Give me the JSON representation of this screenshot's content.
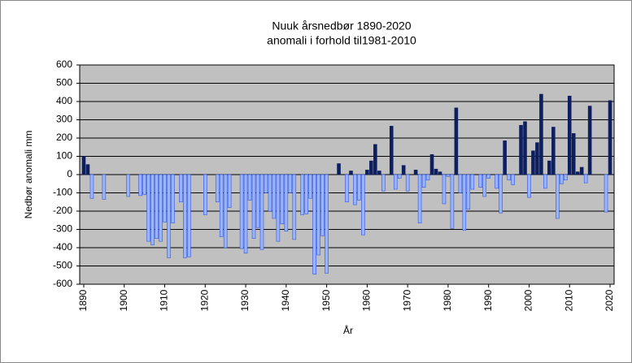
{
  "chart_data": {
    "type": "bar",
    "title": "Nuuk årsnedbør 1890-2020",
    "subtitle": "anomali i forhold til1981-2010",
    "x_label": "År",
    "y_label": "Nedbør anomali mm",
    "x": [
      1890,
      1891,
      1892,
      1893,
      1894,
      1895,
      1896,
      1897,
      1898,
      1899,
      1900,
      1901,
      1902,
      1903,
      1904,
      1905,
      1906,
      1907,
      1908,
      1909,
      1910,
      1911,
      1912,
      1913,
      1914,
      1915,
      1916,
      1917,
      1918,
      1919,
      1920,
      1921,
      1922,
      1923,
      1924,
      1925,
      1926,
      1927,
      1928,
      1929,
      1930,
      1931,
      1932,
      1933,
      1934,
      1935,
      1936,
      1937,
      1938,
      1939,
      1940,
      1941,
      1942,
      1943,
      1944,
      1945,
      1946,
      1947,
      1948,
      1949,
      1950,
      1951,
      1952,
      1953,
      1954,
      1955,
      1956,
      1957,
      1958,
      1959,
      1960,
      1961,
      1962,
      1963,
      1964,
      1965,
      1966,
      1967,
      1968,
      1969,
      1970,
      1971,
      1972,
      1973,
      1974,
      1975,
      1976,
      1977,
      1978,
      1979,
      1980,
      1981,
      1982,
      1983,
      1984,
      1985,
      1986,
      1987,
      1988,
      1989,
      1990,
      1991,
      1992,
      1993,
      1994,
      1995,
      1996,
      1997,
      1998,
      1999,
      2000,
      2001,
      2002,
      2003,
      2004,
      2005,
      2006,
      2007,
      2008,
      2009,
      2010,
      2011,
      2012,
      2013,
      2014,
      2015,
      2016,
      2017,
      2018,
      2019,
      2020
    ],
    "values": [
      100,
      55,
      -130,
      0,
      0,
      -135,
      0,
      0,
      0,
      0,
      0,
      -120,
      0,
      0,
      -115,
      -110,
      -365,
      -385,
      -350,
      -365,
      -260,
      -455,
      -265,
      0,
      -150,
      -455,
      -450,
      0,
      0,
      0,
      -220,
      0,
      0,
      -150,
      -340,
      -400,
      -180,
      0,
      0,
      -405,
      -430,
      -140,
      -350,
      -290,
      -410,
      -100,
      -200,
      -240,
      -365,
      -270,
      -310,
      -100,
      -355,
      0,
      -220,
      -215,
      -130,
      -545,
      -440,
      -335,
      -540,
      0,
      0,
      60,
      0,
      -150,
      20,
      -165,
      -140,
      -330,
      25,
      75,
      165,
      20,
      -90,
      0,
      265,
      -80,
      -20,
      50,
      -90,
      0,
      25,
      -265,
      -70,
      -30,
      110,
      30,
      15,
      -160,
      -10,
      -295,
      365,
      -100,
      -305,
      -190,
      -80,
      0,
      -70,
      -120,
      -20,
      0,
      -75,
      -210,
      185,
      -30,
      -55,
      0,
      270,
      290,
      -125,
      130,
      175,
      440,
      -75,
      75,
      260,
      -240,
      -50,
      -30,
      430,
      225,
      15,
      40,
      -45,
      375,
      0,
      0,
      0,
      -205,
      405
    ],
    "color": "#0d1f5e",
    "negative_color": "#99b4ff",
    "xlim": [
      1889,
      2021
    ],
    "xticks": [
      1890,
      1900,
      1910,
      1920,
      1930,
      1940,
      1950,
      1960,
      1970,
      1980,
      1990,
      2000,
      2010,
      2020
    ],
    "ylim": [
      -600,
      600
    ],
    "yticks": [
      -600,
      -500,
      -400,
      -300,
      -200,
      -100,
      0,
      100,
      200,
      300,
      400,
      500,
      600
    ],
    "grid": true
  }
}
